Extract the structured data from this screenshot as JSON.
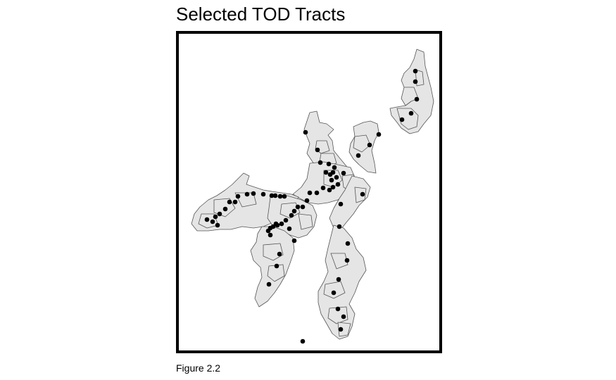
{
  "title": "Selected TOD Tracts",
  "caption": "Figure 2.2",
  "colors": {
    "tract_fill": "#e5e5e5",
    "tract_stroke": "#555555",
    "station": "#000000",
    "frame": "#000000"
  }
}
